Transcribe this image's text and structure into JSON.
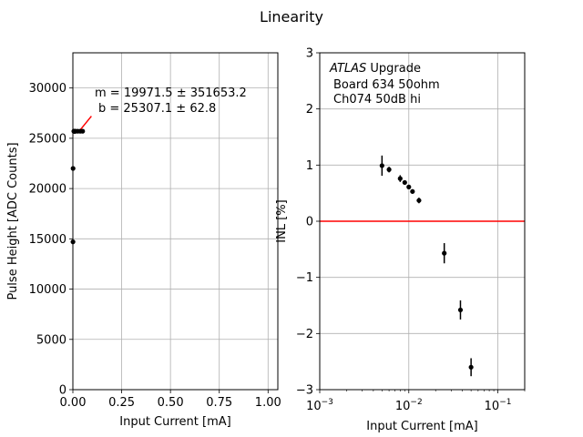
{
  "figure": {
    "title": "Linearity"
  },
  "chart_data": [
    {
      "type": "scatter",
      "xlabel": "Input Current [mA]",
      "ylabel": "Pulse Height [ADC Counts]",
      "xlim": [
        0,
        1.05
      ],
      "ylim": [
        0,
        33500
      ],
      "xticks": [
        0.0,
        0.25,
        0.5,
        0.75,
        1.0
      ],
      "xtick_labels": [
        "0.00",
        "0.25",
        "0.50",
        "0.75",
        "1.00"
      ],
      "yticks": [
        0,
        5000,
        10000,
        15000,
        20000,
        25000,
        30000
      ],
      "ytick_labels": [
        "0",
        "5000",
        "10000",
        "15000",
        "20000",
        "25000",
        "30000"
      ],
      "grid": true,
      "points": [
        {
          "x": 0.0005,
          "y": 14700
        },
        {
          "x": 0.001,
          "y": 22000
        },
        {
          "x": 0.005,
          "y": 25700
        },
        {
          "x": 0.006,
          "y": 25700
        },
        {
          "x": 0.008,
          "y": 25700
        },
        {
          "x": 0.009,
          "y": 25700
        },
        {
          "x": 0.01,
          "y": 25700
        },
        {
          "x": 0.011,
          "y": 25700
        },
        {
          "x": 0.013,
          "y": 25700
        },
        {
          "x": 0.025,
          "y": 25700
        },
        {
          "x": 0.038,
          "y": 25700
        },
        {
          "x": 0.05,
          "y": 25700
        }
      ],
      "fit_line": {
        "x": [
          0.0,
          0.001
        ],
        "y": [
          25307.1,
          25327.07
        ],
        "color": "#ff0000"
      },
      "annotation": {
        "line1": "m = 19971.5 ± 351653.2",
        "line2": "b = 25307.1 ± 62.8"
      },
      "annotation_arrow": {
        "color": "#ff0000",
        "from": {
          "x": 0.095,
          "y": 27200
        },
        "to": {
          "x": 0.03,
          "y": 25650
        }
      }
    },
    {
      "type": "scatter",
      "xlabel": "Input Current [mA]",
      "ylabel": "INL [%]",
      "xscale": "log",
      "xlim": [
        0.001,
        0.2
      ],
      "ylim": [
        -3,
        3
      ],
      "xticks": [
        0.001,
        0.01,
        0.1
      ],
      "xtick_labels": [
        {
          "base": "10",
          "exp": "−3"
        },
        {
          "base": "10",
          "exp": "−2"
        },
        {
          "base": "10",
          "exp": "−1"
        }
      ],
      "yticks": [
        -3,
        -2,
        -1,
        0,
        1,
        2,
        3
      ],
      "ytick_labels": [
        "−3",
        "−2",
        "−1",
        "0",
        "1",
        "2",
        "3"
      ],
      "grid": true,
      "points": [
        {
          "x": 0.005,
          "y": 0.99,
          "err": 0.18
        },
        {
          "x": 0.006,
          "y": 0.92,
          "err": 0.05
        },
        {
          "x": 0.008,
          "y": 0.76,
          "err": 0.06
        },
        {
          "x": 0.009,
          "y": 0.69,
          "err": 0.04
        },
        {
          "x": 0.01,
          "y": 0.61,
          "err": 0.04
        },
        {
          "x": 0.011,
          "y": 0.53,
          "err": 0.04
        },
        {
          "x": 0.013,
          "y": 0.37,
          "err": 0.05
        },
        {
          "x": 0.025,
          "y": -0.57,
          "err": 0.18
        },
        {
          "x": 0.038,
          "y": -1.58,
          "err": 0.17
        },
        {
          "x": 0.05,
          "y": -2.6,
          "err": 0.16
        }
      ],
      "reference_line": {
        "y": 0,
        "color": "#ff0000"
      },
      "annotation": {
        "italic": "ATLAS",
        "line1_rest": " Upgrade",
        "line2": "Board 634 50ohm",
        "line3": "Ch074 50dB hi"
      }
    }
  ]
}
